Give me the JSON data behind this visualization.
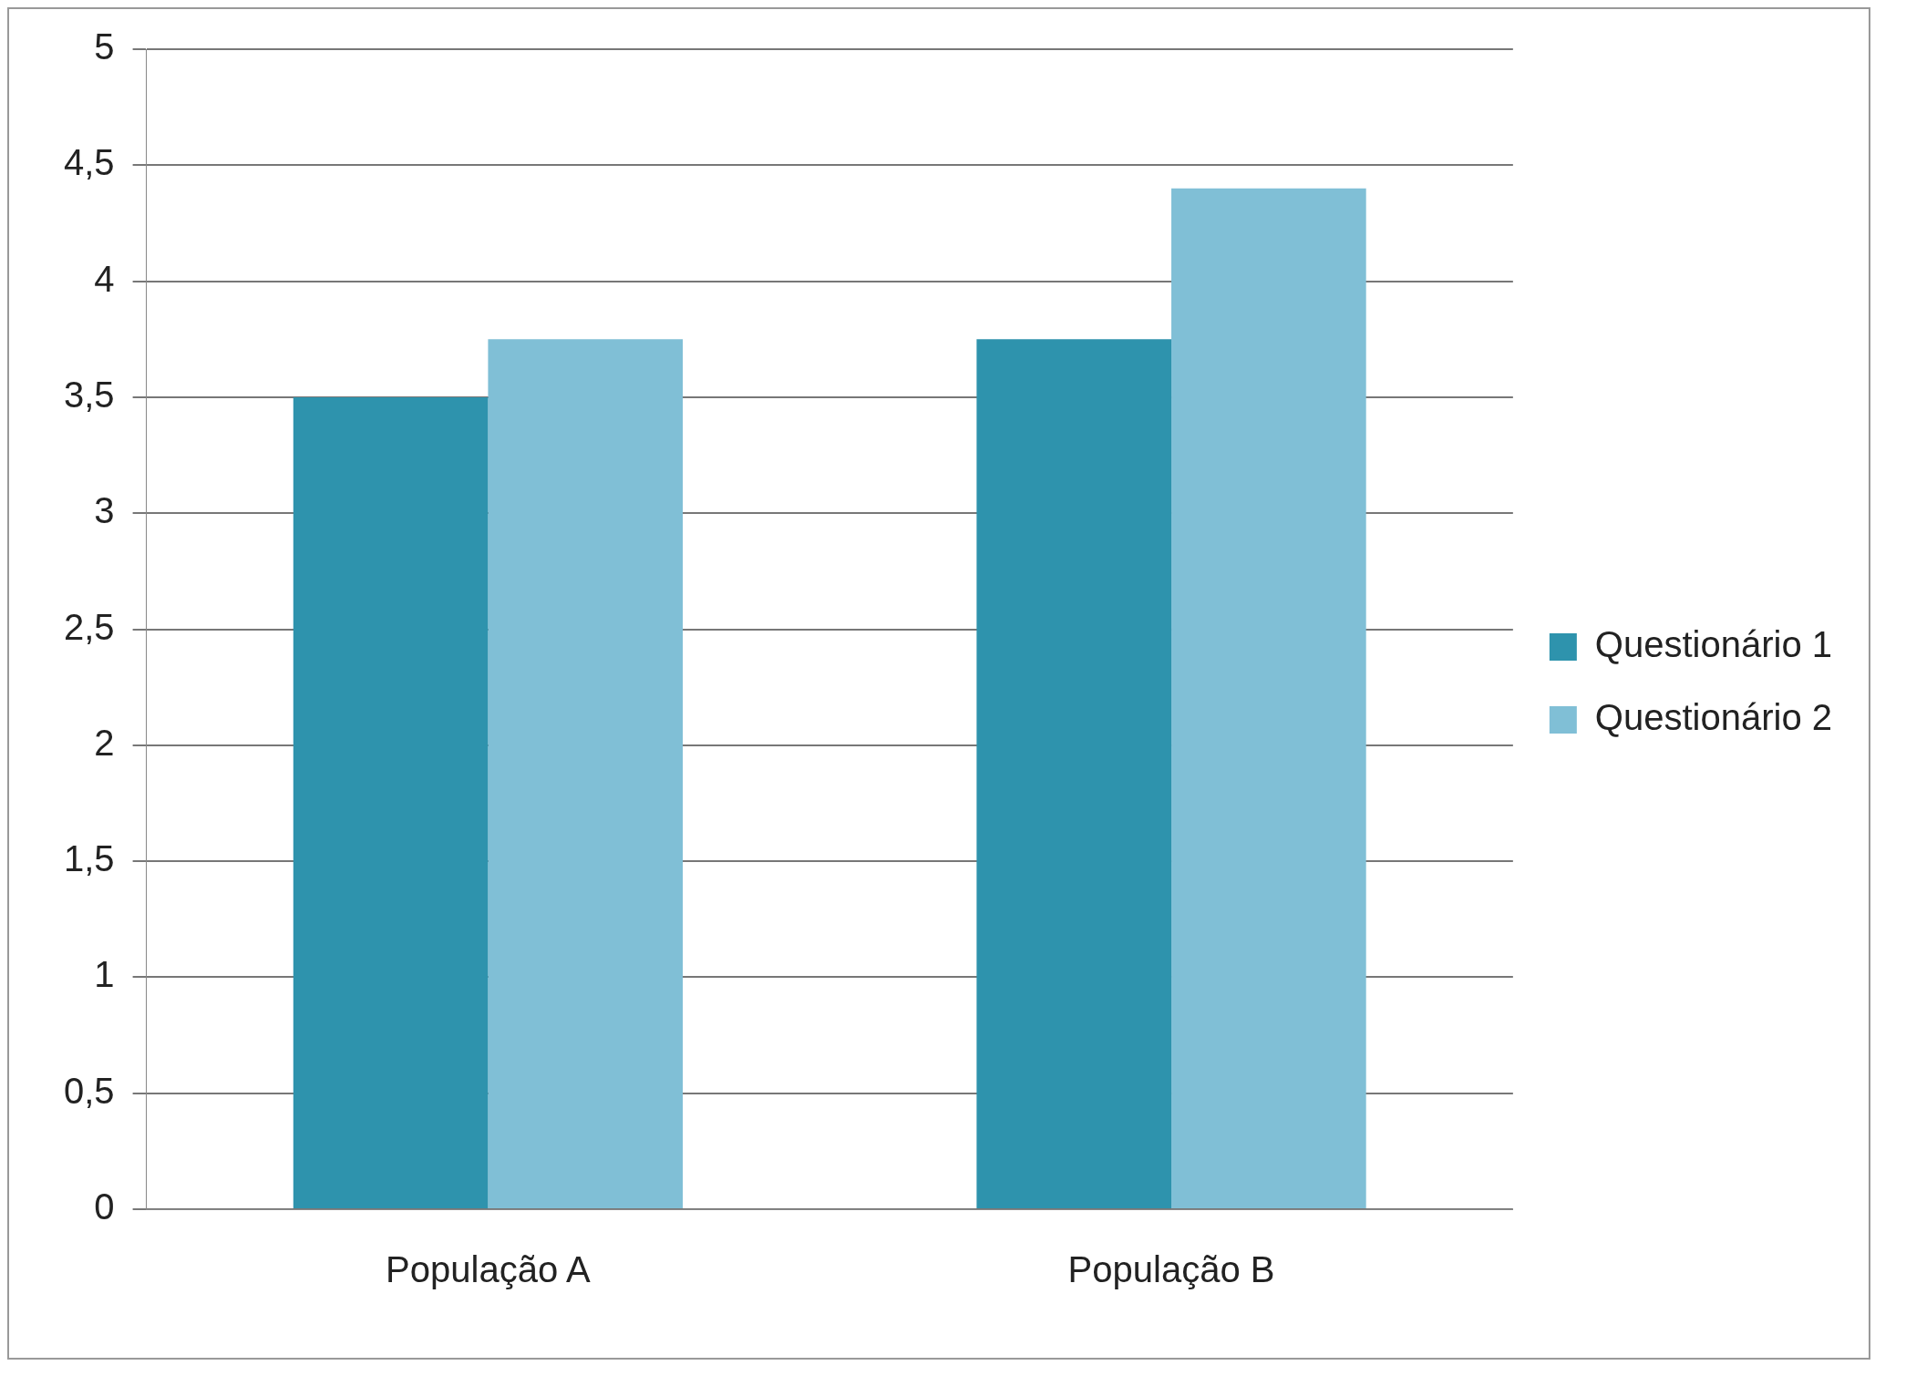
{
  "chart_data": {
    "type": "bar",
    "categories": [
      "População A",
      "População B"
    ],
    "series": [
      {
        "name": "Questionário 1",
        "color": "#2e93ad",
        "values": [
          3.5,
          3.75
        ]
      },
      {
        "name": "Questionário 2",
        "color": "#80bfd6",
        "values": [
          3.75,
          4.4
        ]
      }
    ],
    "ylim": [
      0,
      5
    ],
    "yticks": [
      0,
      {
        "value": 0.5,
        "label": "0,5"
      },
      1,
      {
        "value": 1.5,
        "label": "1,5"
      },
      2,
      {
        "value": 2.5,
        "label": "2,5"
      },
      3,
      {
        "value": 3.5,
        "label": "3,5"
      },
      4,
      {
        "value": 4.5,
        "label": "4,5"
      },
      5
    ],
    "grid": "y",
    "legend": "right"
  }
}
